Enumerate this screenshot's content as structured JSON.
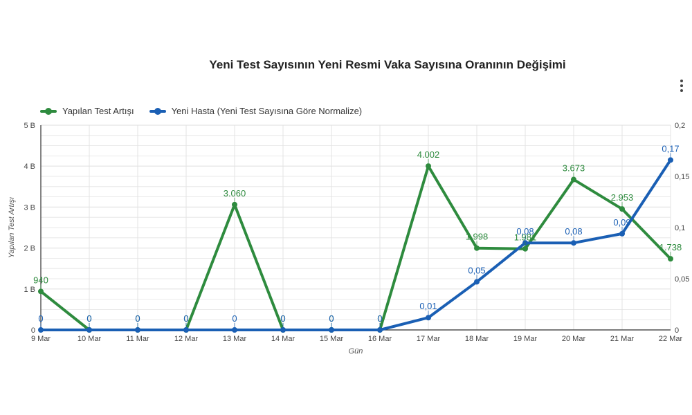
{
  "title": "Yeni Test Sayısının Yeni Resmi Vaka Sayısına Oranının Değişimi",
  "menu_icon": "more-vertical-icon",
  "colors": {
    "green": "#2e8b3e",
    "blue": "#1a5fb4",
    "grid": "#e3e3e3",
    "axis": "#333333"
  },
  "chart_data": {
    "type": "line",
    "categories": [
      "9 Mar",
      "10 Mar",
      "11 Mar",
      "12 Mar",
      "13 Mar",
      "14 Mar",
      "15 Mar",
      "16 Mar",
      "17 Mar",
      "18 Mar",
      "19 Mar",
      "20 Mar",
      "21 Mar",
      "22 Mar"
    ],
    "xlabel": "Gün",
    "ylabel": "Yapılan Test Artışı",
    "y_left": {
      "range": [
        0,
        5000
      ],
      "ticks": [
        0,
        1000,
        2000,
        3000,
        4000,
        5000
      ],
      "tick_labels": [
        "0",
        "1 B",
        "2 B",
        "3 B",
        "4 B",
        "5 B"
      ]
    },
    "y_right": {
      "range": [
        0,
        0.2
      ],
      "ticks": [
        0,
        0.05,
        0.1,
        0.15,
        0.2
      ],
      "tick_labels": [
        "0",
        "0,05",
        "0,1",
        "0,15",
        "0,2"
      ]
    },
    "grid": true,
    "legend_position": "top-left",
    "series": [
      {
        "name": "Yapılan Test Artışı",
        "axis": "left",
        "color": "#2e8b3e",
        "values": [
          940,
          0,
          0,
          0,
          3060,
          0,
          0,
          0,
          4002,
          1998,
          1981,
          3673,
          2953,
          1738
        ],
        "labels": [
          "940",
          "0",
          "0",
          "0",
          "3.060",
          "0",
          "0",
          "0",
          "4.002",
          "1.998",
          "1.981",
          "3.673",
          "2.953",
          "1.738"
        ]
      },
      {
        "name": "Yeni Hasta (Yeni Test Sayısına Göre Normalize)",
        "axis": "right",
        "color": "#1a5fb4",
        "values": [
          0,
          0,
          0,
          0,
          0,
          0,
          0,
          0,
          0.012,
          0.047,
          0.085,
          0.085,
          0.094,
          0.166
        ],
        "labels": [
          "0",
          "0",
          "0",
          "0",
          "0",
          "0",
          "0",
          "0",
          "0,01",
          "0,05",
          "0,08",
          "0,08",
          "0,09",
          "0,17"
        ]
      }
    ]
  }
}
